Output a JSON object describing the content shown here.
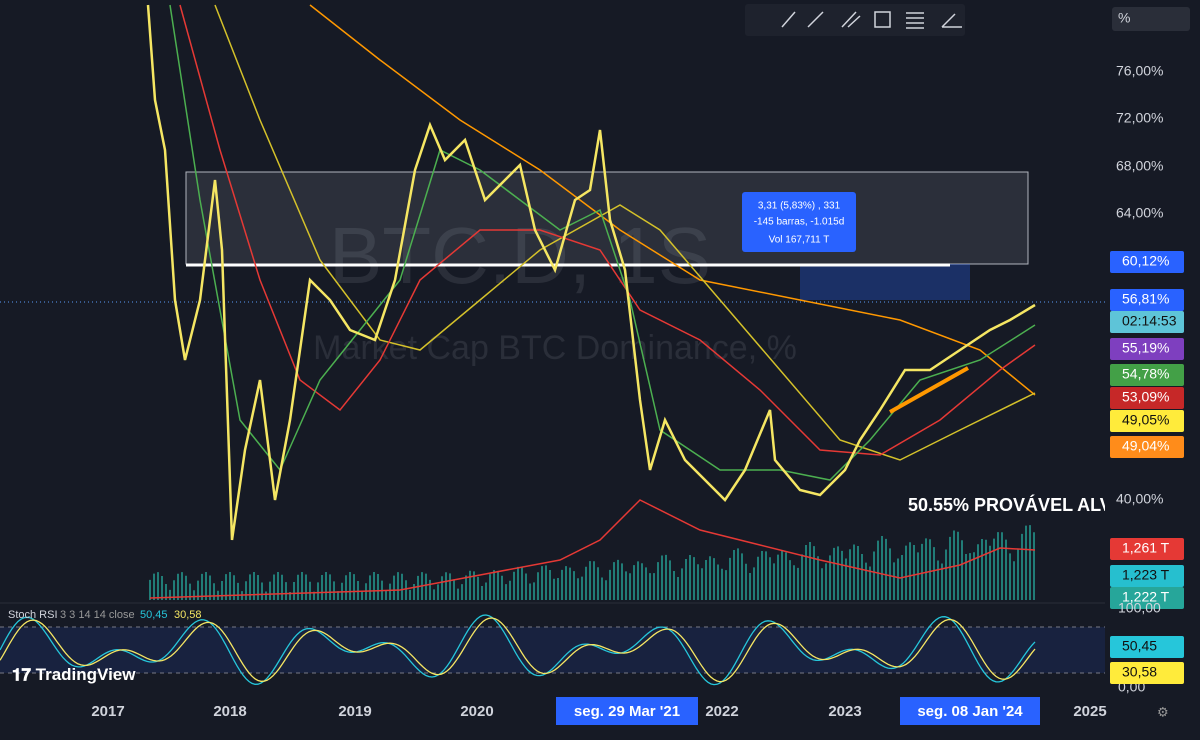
{
  "toolbar": {
    "scale_button": "%"
  },
  "watermark": {
    "symbol": "BTC.D, 1S",
    "description": "Market Cap BTC Dominance, %"
  },
  "price_axis": {
    "ticks": [
      "76,00%",
      "72,00%",
      "68,00%",
      "64,00%",
      "40,00%"
    ],
    "badges": [
      "60,12%",
      "56,81%",
      "02:14:53",
      "55,19%",
      "54,78%",
      "53,09%",
      "49,05%",
      "49,04%"
    ],
    "volume_badges": [
      "1,261 T",
      "1,223 T",
      "1,222 T"
    ]
  },
  "measure_tooltip": {
    "lines": [
      "3,31 (5,83%) , 331",
      "-145 barras, -1.015d",
      "Vol 167,711 T"
    ]
  },
  "annotation": "50.55% PROVÁVEL ALV",
  "indicator": {
    "name": "Stoch RSI",
    "params": "3 3 14 14 close",
    "k": "50,45",
    "d": "30,58",
    "axis": [
      "100,00",
      "0,00"
    ],
    "badges": [
      "50,45",
      "30,58"
    ]
  },
  "logo": "TradingView",
  "time_axis": {
    "labels": [
      "2017",
      "2018",
      "2019",
      "2020",
      "2022",
      "2023",
      "2025"
    ],
    "highlights": [
      "seg. 29 Mar '21",
      "seg. 08 Jan '24"
    ]
  }
}
